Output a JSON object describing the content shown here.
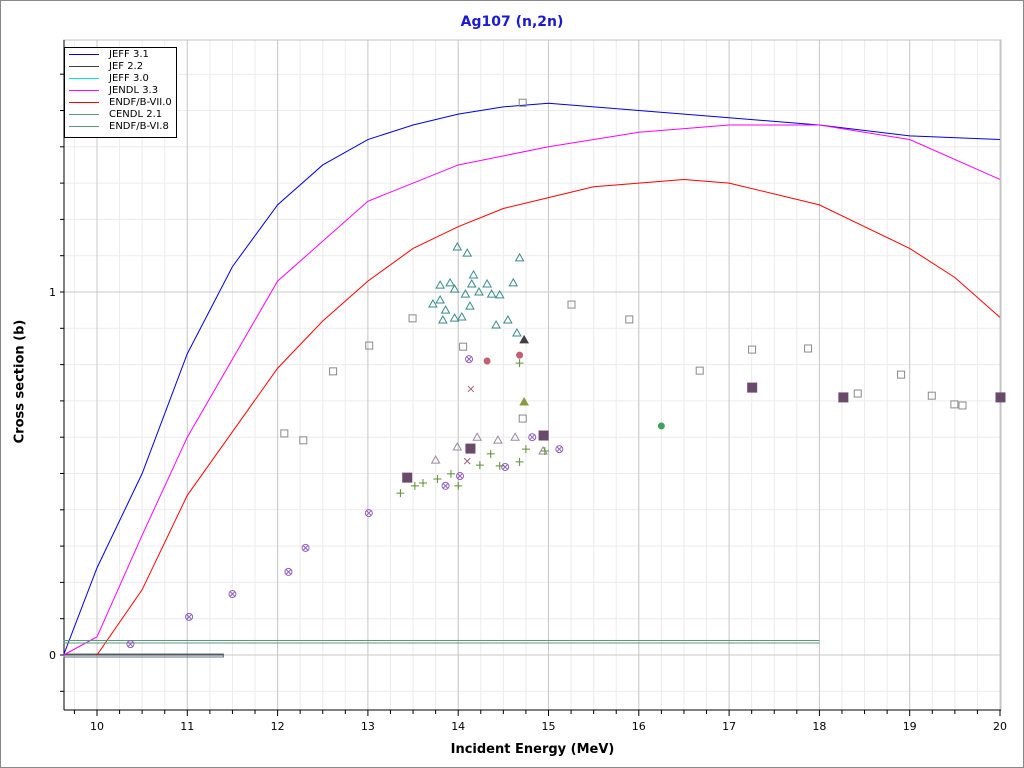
{
  "chart_data": {
    "type": "line",
    "title": "Ag107 (n,2n)",
    "xlabel": "Incident Energy (MeV)",
    "ylabel": "Cross section (b)",
    "xlim": [
      9.63,
      20
    ],
    "ylim": [
      -0.15,
      1.69
    ],
    "xticks": [
      "10",
      "11",
      "12",
      "13",
      "14",
      "15",
      "16",
      "17",
      "18",
      "19",
      "20"
    ],
    "yticks": [
      "0",
      "1"
    ],
    "grid": true,
    "legend_position": "top-left",
    "series": [
      {
        "name": "JEFF 3.1",
        "color": "#0000e0",
        "x": [
          9.63,
          10,
          10.5,
          11,
          11.5,
          12,
          12.5,
          13,
          13.5,
          14,
          14.5,
          15,
          16,
          17,
          18,
          19,
          20
        ],
        "y": [
          0,
          0.24,
          0.5,
          0.83,
          1.07,
          1.24,
          1.35,
          1.42,
          1.46,
          1.49,
          1.51,
          1.52,
          1.5,
          1.48,
          1.46,
          1.43,
          1.42
        ]
      },
      {
        "name": "JEF 2.2",
        "color": "#404040",
        "x": [
          9.63,
          11.4
        ],
        "y": [
          0,
          0
        ]
      },
      {
        "name": "JEFF 3.0",
        "color": "#00e0e0",
        "x": [],
        "y": []
      },
      {
        "name": "JENDL 3.3",
        "color": "#ff00ff",
        "x": [
          9.63,
          10,
          10.5,
          11,
          12,
          13,
          14,
          15,
          16,
          17,
          18,
          19,
          20
        ],
        "y": [
          0,
          0.05,
          0.33,
          0.6,
          1.03,
          1.25,
          1.35,
          1.4,
          1.44,
          1.46,
          1.46,
          1.42,
          1.31
        ]
      },
      {
        "name": "ENDF/B-VII.0",
        "color": "#ff0000",
        "x": [
          10,
          10.5,
          11,
          12,
          12.5,
          13,
          13.5,
          14,
          14.5,
          15,
          15.5,
          16,
          16.5,
          17,
          18,
          18.5,
          19,
          19.5,
          20
        ],
        "y": [
          0,
          0.18,
          0.44,
          0.79,
          0.92,
          1.03,
          1.12,
          1.18,
          1.23,
          1.26,
          1.29,
          1.3,
          1.31,
          1.3,
          1.24,
          1.18,
          1.12,
          1.04,
          0.93
        ]
      },
      {
        "name": "CENDL 2.1",
        "color": "#5a9a7a",
        "x": [
          9.63,
          18
        ],
        "y": [
          0.04,
          0.04
        ]
      },
      {
        "name": "ENDF/B-VI.8",
        "color": "#5a9a7a",
        "x": [
          9.63,
          18
        ],
        "y": [
          0.033,
          0.033
        ]
      }
    ],
    "experimental": [
      {
        "marker": "triangle",
        "color": "#3a8a8a",
        "points": [
          [
            13.99,
            1.124
          ],
          [
            14.1,
            1.107
          ],
          [
            14.68,
            1.094
          ],
          [
            14.17,
            1.047
          ],
          [
            13.8,
            1.019
          ],
          [
            13.91,
            1.025
          ],
          [
            14.15,
            1.022
          ],
          [
            14.32,
            1.022
          ],
          [
            14.61,
            1.025
          ],
          [
            13.96,
            1.008
          ],
          [
            14.08,
            0.994
          ],
          [
            14.23,
            1.0
          ],
          [
            14.37,
            0.994
          ],
          [
            14.46,
            0.992
          ],
          [
            13.72,
            0.967
          ],
          [
            13.8,
            0.978
          ],
          [
            13.86,
            0.95
          ],
          [
            14.13,
            0.961
          ],
          [
            13.83,
            0.923
          ],
          [
            13.96,
            0.928
          ],
          [
            14.04,
            0.931
          ],
          [
            14.42,
            0.909
          ],
          [
            14.55,
            0.923
          ],
          [
            14.65,
            0.887
          ]
        ]
      },
      {
        "marker": "triangle",
        "color": "#9a8aa0",
        "points": [
          [
            13.99,
            0.573
          ],
          [
            13.75,
            0.537
          ],
          [
            14.21,
            0.6
          ],
          [
            14.44,
            0.592
          ],
          [
            14.63,
            0.6
          ],
          [
            14.94,
            0.562
          ]
        ]
      },
      {
        "marker": "square",
        "color": "#8a8a8a",
        "points": [
          [
            14.72,
            1.52
          ],
          [
            15.26,
            0.964
          ],
          [
            15.9,
            0.923
          ],
          [
            13.5,
            0.926
          ],
          [
            13.02,
            0.851
          ],
          [
            14.06,
            0.848
          ],
          [
            12.62,
            0.78
          ],
          [
            14.72,
            0.65
          ],
          [
            12.08,
            0.609
          ],
          [
            12.29,
            0.59
          ],
          [
            16.68,
            0.782
          ],
          [
            17.26,
            0.84
          ],
          [
            17.88,
            0.843
          ],
          [
            18.43,
            0.719
          ],
          [
            18.91,
            0.771
          ],
          [
            19.25,
            0.713
          ],
          [
            19.5,
            0.689
          ],
          [
            19.59,
            0.686
          ]
        ]
      },
      {
        "marker": "filled-square",
        "color": "#6a4a6a",
        "points": [
          [
            13.43,
            0.49
          ],
          [
            14.13,
            0.57
          ],
          [
            14.94,
            0.606
          ],
          [
            17.25,
            0.738
          ],
          [
            18.26,
            0.711
          ],
          [
            20.0,
            0.711
          ]
        ]
      },
      {
        "marker": "crossed-circle",
        "color": "#9060c0",
        "points": [
          [
            11.02,
            0.105
          ],
          [
            11.5,
            0.168
          ],
          [
            12.12,
            0.229
          ],
          [
            12.31,
            0.295
          ],
          [
            13.01,
            0.391
          ],
          [
            13.86,
            0.466
          ],
          [
            14.02,
            0.493
          ],
          [
            14.12,
            0.815
          ],
          [
            14.52,
            0.518
          ],
          [
            14.82,
            0.6
          ],
          [
            15.12,
            0.567
          ],
          [
            10.37,
            0.03
          ]
        ]
      },
      {
        "marker": "plus",
        "color": "#5a9030",
        "points": [
          [
            13.36,
            0.446
          ],
          [
            13.52,
            0.466
          ],
          [
            13.61,
            0.474
          ],
          [
            13.77,
            0.485
          ],
          [
            13.92,
            0.499
          ],
          [
            14.0,
            0.466
          ],
          [
            14.24,
            0.523
          ],
          [
            14.36,
            0.554
          ],
          [
            14.46,
            0.521
          ],
          [
            14.68,
            0.532
          ],
          [
            14.68,
            0.804
          ],
          [
            14.75,
            0.567
          ],
          [
            14.96,
            0.562
          ]
        ]
      },
      {
        "marker": "filled-circle",
        "color": "#c06070",
        "points": [
          [
            14.32,
            0.81
          ],
          [
            14.68,
            0.826
          ]
        ]
      },
      {
        "marker": "filled-circle",
        "color": "#40a060",
        "points": [
          [
            16.25,
            0.631
          ]
        ]
      },
      {
        "marker": "filled-triangle",
        "color": "#404040",
        "points": [
          [
            14.73,
            0.868
          ]
        ]
      },
      {
        "marker": "filled-triangle",
        "color": "#8a9a40",
        "points": [
          [
            14.73,
            0.697
          ]
        ]
      },
      {
        "marker": "x",
        "color": "#a06070",
        "points": [
          [
            14.14,
            0.733
          ],
          [
            14.1,
            0.534
          ]
        ]
      }
    ]
  }
}
